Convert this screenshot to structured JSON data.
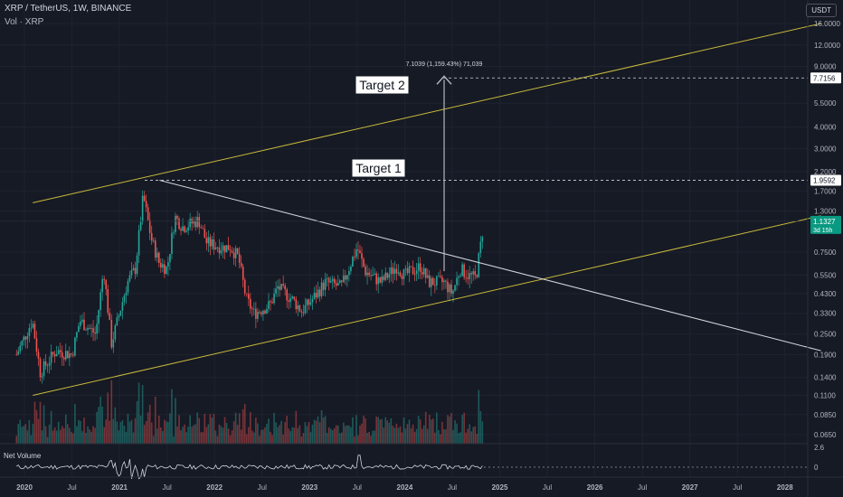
{
  "header": {
    "symbol_line": "XRP / TetherUS, 1W, BINANCE",
    "volume_line": "Vol · XRP",
    "currency_button": "USDT"
  },
  "colors": {
    "background": "#161a25",
    "grid": "#1f2330",
    "up_candle": "#26a69a",
    "down_candle": "#ef5350",
    "channel_lines": "#c8b93a",
    "wedge_line": "#d1d4dc",
    "axis_text": "#b2b5be",
    "price_tag": "#089981"
  },
  "chart_data": [
    {
      "type": "candlestick",
      "scale": "log",
      "title": "XRP / TetherUS, 1W, BINANCE",
      "xlabel": "",
      "ylabel": "",
      "legend": "none",
      "grid": true,
      "ylim": [
        0.06,
        16.0
      ],
      "x_ticks": [
        "2020",
        "Jul",
        "2021",
        "Jul",
        "2022",
        "Jul",
        "2023",
        "Jul",
        "2024",
        "Jul",
        "2025",
        "Jul",
        "2026",
        "Jul",
        "2027",
        "Jul",
        "2028"
      ],
      "y_ticks": [
        "16.0000",
        "12.0000",
        "9.0000",
        "5.5000",
        "4.0000",
        "3.0000",
        "2.2000",
        "1.7000",
        "1.3000",
        "0.7500",
        "0.5500",
        "0.4300",
        "0.3300",
        "0.2500",
        "0.1900",
        "0.1400",
        "0.1100",
        "0.0850",
        "0.0650"
      ],
      "price_tags": [
        {
          "label": "7.7156",
          "value": 7.7156
        },
        {
          "label": "1.9592",
          "value": 1.9592
        },
        {
          "label": "1.1327",
          "sub": "3d 15h",
          "value": 1.1327
        }
      ],
      "annotations": {
        "target1": "Target 1",
        "target2": "Target 2",
        "measure_label": "7.1039 (1,159.43%) 71,039"
      },
      "trendlines": [
        {
          "name": "upper-channel",
          "from": [
            "2019-12",
            1.45
          ],
          "to": [
            "2028-06",
            16.0
          ]
        },
        {
          "name": "lower-channel",
          "from": [
            "2019-12",
            0.11
          ],
          "to": [
            "2028-06",
            1.22
          ]
        },
        {
          "name": "wedge-resistance",
          "from": [
            "2021-04",
            1.96
          ],
          "to": [
            "2028-06",
            0.2
          ]
        }
      ],
      "price_path": [
        [
          "2019-12",
          0.19
        ],
        [
          "2020-02",
          0.3
        ],
        [
          "2020-03",
          0.15
        ],
        [
          "2020-05",
          0.2
        ],
        [
          "2020-07",
          0.19
        ],
        [
          "2020-08",
          0.3
        ],
        [
          "2020-10",
          0.25
        ],
        [
          "2020-11",
          0.6
        ],
        [
          "2020-12",
          0.22
        ],
        [
          "2021-02",
          0.5
        ],
        [
          "2021-03",
          0.6
        ],
        [
          "2021-04",
          1.6
        ],
        [
          "2021-05",
          0.9
        ],
        [
          "2021-06",
          0.65
        ],
        [
          "2021-07",
          0.6
        ],
        [
          "2021-08",
          1.2
        ],
        [
          "2021-09",
          1.05
        ],
        [
          "2021-11",
          1.15
        ],
        [
          "2021-12",
          0.85
        ],
        [
          "2022-02",
          0.8
        ],
        [
          "2022-03",
          0.8
        ],
        [
          "2022-04",
          0.7
        ],
        [
          "2022-05",
          0.4
        ],
        [
          "2022-06",
          0.33
        ],
        [
          "2022-08",
          0.37
        ],
        [
          "2022-09",
          0.47
        ],
        [
          "2022-11",
          0.39
        ],
        [
          "2022-12",
          0.34
        ],
        [
          "2023-01",
          0.38
        ],
        [
          "2023-03",
          0.5
        ],
        [
          "2023-05",
          0.47
        ],
        [
          "2023-07",
          0.8
        ],
        [
          "2023-08",
          0.58
        ],
        [
          "2023-10",
          0.5
        ],
        [
          "2023-12",
          0.62
        ],
        [
          "2024-01",
          0.55
        ],
        [
          "2024-03",
          0.62
        ],
        [
          "2024-04",
          0.5
        ],
        [
          "2024-06",
          0.5
        ],
        [
          "2024-07",
          0.43
        ],
        [
          "2024-08",
          0.6
        ],
        [
          "2024-09",
          0.55
        ],
        [
          "2024-10",
          0.53
        ],
        [
          "2024-11",
          1.13
        ]
      ]
    },
    {
      "type": "bar",
      "title": "Vol · XRP",
      "legend": "none"
    },
    {
      "type": "line",
      "title": "Net Volume",
      "y_ticks": [
        "2.6",
        "0"
      ]
    }
  ],
  "net_volume_label": "Net Volume"
}
